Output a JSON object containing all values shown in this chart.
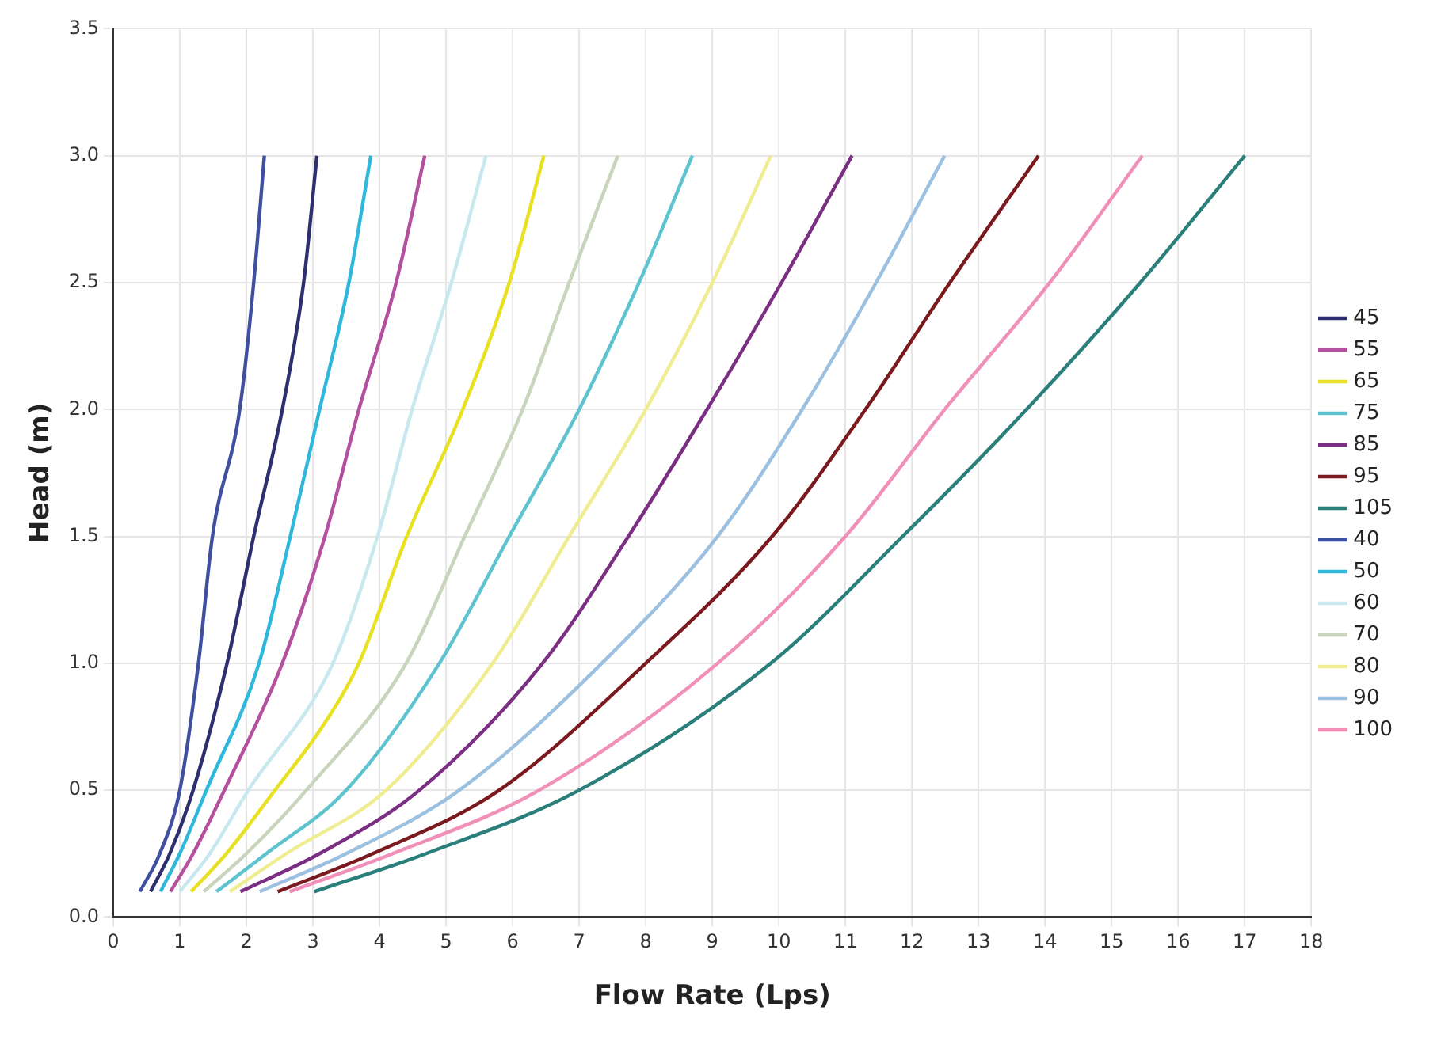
{
  "chart_data": {
    "type": "line",
    "xlabel": "Flow Rate (Lps)",
    "ylabel": "Head (m)",
    "xlim": [
      0,
      18
    ],
    "xticks": [
      0,
      1,
      2,
      3,
      4,
      5,
      6,
      7,
      8,
      9,
      10,
      11,
      12,
      13,
      14,
      15,
      16,
      17,
      18
    ],
    "ylim": [
      0,
      3.5
    ],
    "yticks": [
      {
        "value": 0,
        "label": "0.0"
      },
      {
        "value": 0.5,
        "label": "0.5"
      },
      {
        "value": 1,
        "label": "1.0"
      },
      {
        "value": 1.5,
        "label": "1.5"
      },
      {
        "value": 2,
        "label": "2.0"
      },
      {
        "value": 2.5,
        "label": "2.5"
      },
      {
        "value": 3,
        "label": "3.0"
      },
      {
        "value": 3.5,
        "label": "3.5"
      }
    ],
    "grid": true,
    "legend": "right",
    "marker": "none",
    "line_style": "solid",
    "series": [
      {
        "name": "45",
        "color": "#2e2f6e",
        "x": [
          0.56,
          0.85,
          1.2,
          1.71,
          2.11,
          2.54,
          2.86,
          3.06
        ],
        "values": [
          0.1,
          0.25,
          0.5,
          1.0,
          1.5,
          2.0,
          2.5,
          3.0
        ]
      },
      {
        "name": "55",
        "color": "#b5509e",
        "x": [
          0.86,
          1.2,
          1.67,
          2.54,
          3.18,
          3.69,
          4.25,
          4.68
        ],
        "values": [
          0.1,
          0.25,
          0.5,
          1.0,
          1.5,
          2.0,
          2.5,
          3.0
        ]
      },
      {
        "name": "65",
        "color": "#e8e020",
        "x": [
          1.17,
          1.7,
          2.43,
          3.14,
          3.69,
          4.41,
          5.25,
          5.95,
          6.47
        ],
        "values": [
          0.1,
          0.25,
          0.5,
          0.75,
          1.0,
          1.5,
          2.0,
          2.5,
          3.0
        ]
      },
      {
        "name": "75",
        "color": "#5cc3cf",
        "x": [
          1.55,
          2.3,
          3.5,
          4.9,
          5.95,
          7.0,
          7.9,
          8.7
        ],
        "values": [
          0.1,
          0.25,
          0.5,
          1.0,
          1.5,
          2.0,
          2.5,
          3.0
        ]
      },
      {
        "name": "85",
        "color": "#7b2f82",
        "x": [
          1.91,
          3.1,
          4.6,
          6.45,
          7.74,
          8.92,
          10.04,
          11.1
        ],
        "values": [
          0.1,
          0.25,
          0.5,
          1.0,
          1.5,
          2.0,
          2.5,
          3.0
        ]
      },
      {
        "name": "95",
        "color": "#7a1a1f",
        "x": [
          2.47,
          3.9,
          5.8,
          8.0,
          9.9,
          11.3,
          12.57,
          13.9
        ],
        "values": [
          0.1,
          0.25,
          0.5,
          1.0,
          1.5,
          2.0,
          2.5,
          3.0
        ]
      },
      {
        "name": "105",
        "color": "#2a7f7a",
        "x": [
          3.02,
          4.7,
          7.0,
          9.88,
          11.86,
          13.72,
          15.43,
          17.0
        ],
        "values": [
          0.1,
          0.25,
          0.5,
          1.0,
          1.5,
          2.0,
          2.5,
          3.0
        ]
      },
      {
        "name": "40",
        "color": "#4050a0",
        "x": [
          0.4,
          0.7,
          1.0,
          1.28,
          1.49,
          1.9,
          2.11,
          2.27
        ],
        "values": [
          0.1,
          0.25,
          0.5,
          1.0,
          1.5,
          2.0,
          2.5,
          3.0
        ]
      },
      {
        "name": "50",
        "color": "#2fb8dc",
        "x": [
          0.71,
          1.0,
          1.4,
          2.19,
          2.66,
          3.1,
          3.54,
          3.87
        ],
        "values": [
          0.1,
          0.25,
          0.5,
          1.0,
          1.5,
          2.0,
          2.5,
          3.0
        ]
      },
      {
        "name": "60",
        "color": "#c8e8f0",
        "x": [
          1.0,
          1.45,
          2.03,
          3.3,
          3.97,
          4.49,
          5.08,
          5.6
        ],
        "values": [
          0.1,
          0.25,
          0.5,
          1.0,
          1.5,
          2.0,
          2.5,
          3.0
        ]
      },
      {
        "name": "70",
        "color": "#c8d4bc",
        "x": [
          1.36,
          2.0,
          2.9,
          4.4,
          5.28,
          6.15,
          6.85,
          7.58
        ],
        "values": [
          0.1,
          0.25,
          0.5,
          1.0,
          1.5,
          2.0,
          2.5,
          3.0
        ]
      },
      {
        "name": "80",
        "color": "#f0ec90",
        "x": [
          1.75,
          2.6,
          4.1,
          5.7,
          6.85,
          8.0,
          9.0,
          9.88
        ],
        "values": [
          0.1,
          0.25,
          0.5,
          1.0,
          1.5,
          2.0,
          2.5,
          3.0
        ]
      },
      {
        "name": "90",
        "color": "#9cc0e0",
        "x": [
          2.2,
          3.5,
          5.2,
          7.34,
          9.08,
          10.35,
          11.46,
          12.49
        ],
        "values": [
          0.1,
          0.25,
          0.5,
          1.0,
          1.5,
          2.0,
          2.5,
          3.0
        ]
      },
      {
        "name": "100",
        "color": "#f090b8",
        "x": [
          2.65,
          4.2,
          6.4,
          9.08,
          11.0,
          12.49,
          14.07,
          15.46
        ],
        "values": [
          0.1,
          0.25,
          0.5,
          1.0,
          1.5,
          2.0,
          2.5,
          3.0
        ]
      }
    ]
  }
}
